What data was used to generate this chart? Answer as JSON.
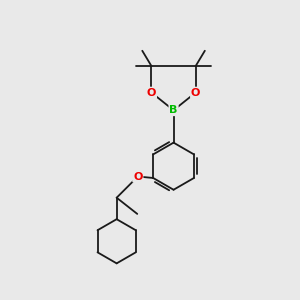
{
  "background_color": "#e9e9e9",
  "bond_color": "#1a1a1a",
  "atom_colors": {
    "B": "#00bb00",
    "O": "#ee0000",
    "C": "#1a1a1a"
  },
  "font_size_B": 8,
  "font_size_O": 8,
  "line_width": 1.3,
  "fig_width": 3.0,
  "fig_height": 3.0,
  "dpi": 100
}
